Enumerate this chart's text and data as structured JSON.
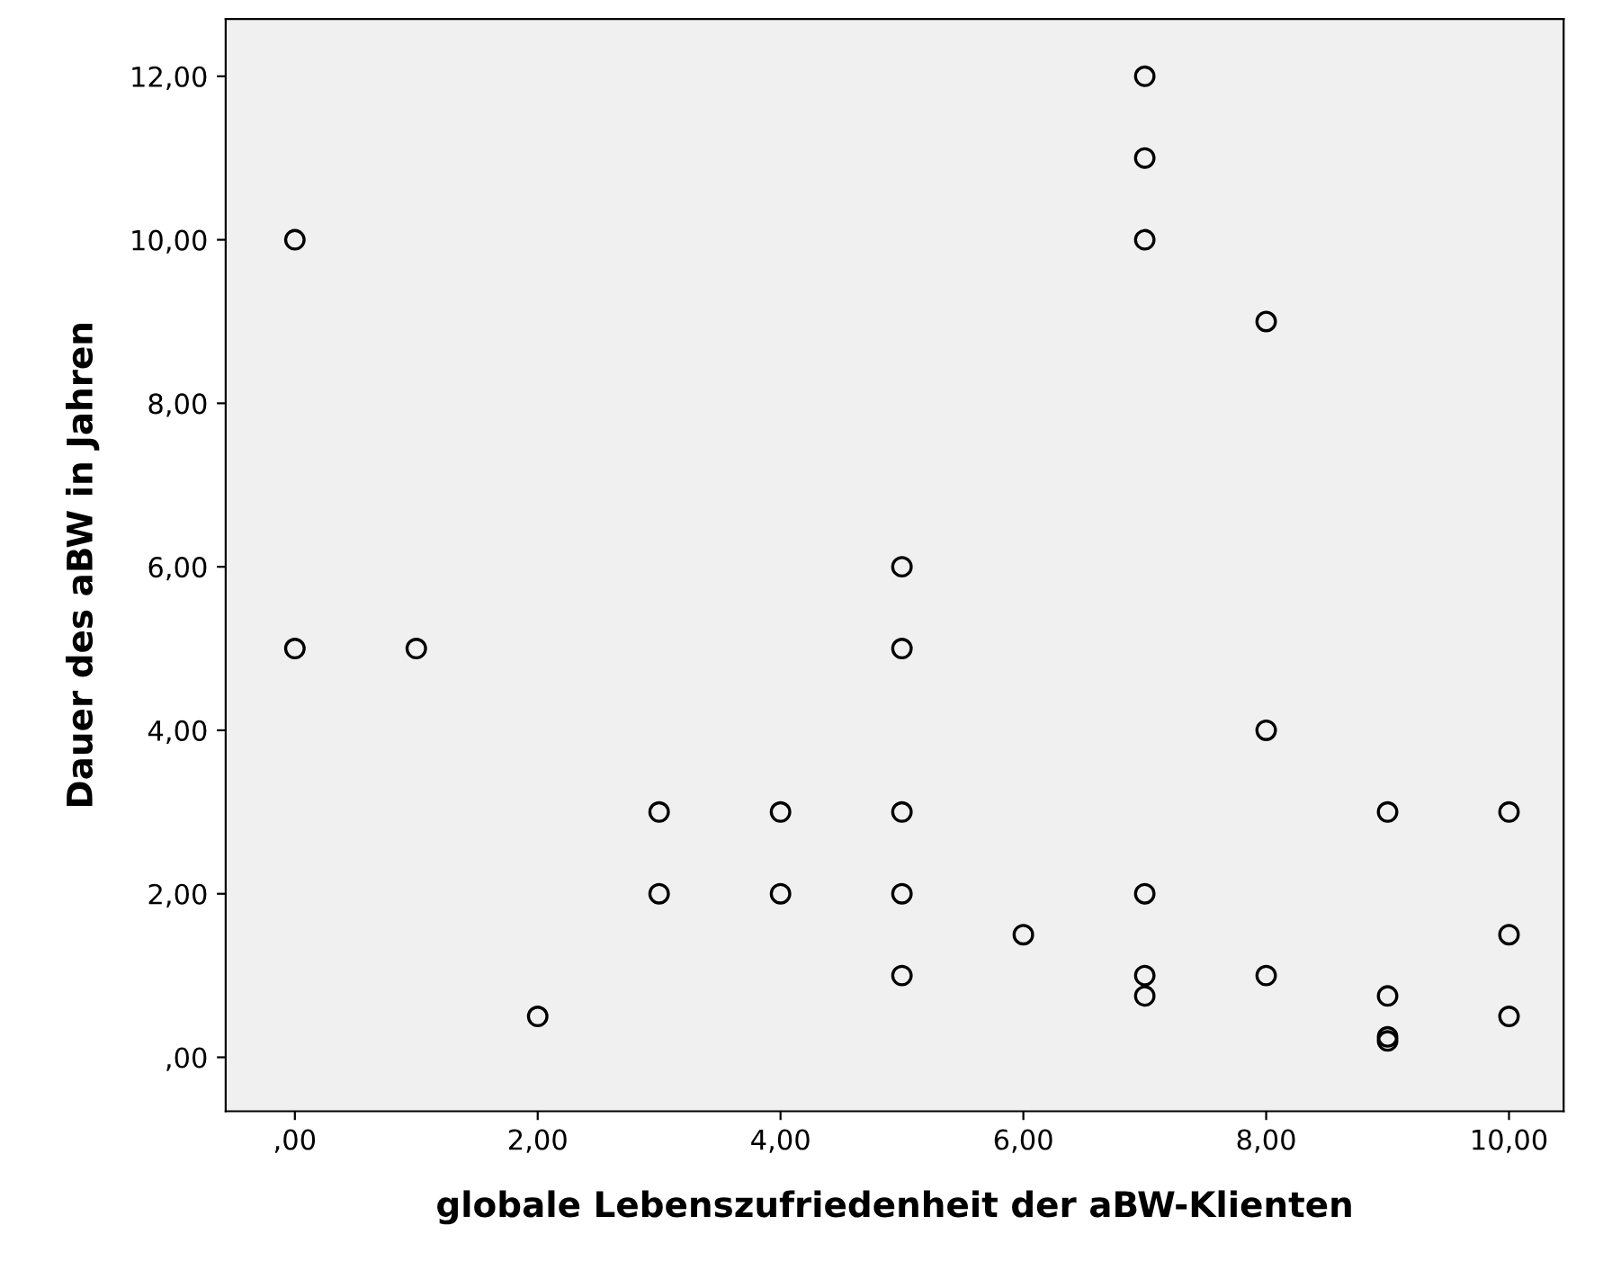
{
  "chart_data": {
    "type": "scatter",
    "xlabel": "globale Lebenszufriedenheit der aBW-Klienten",
    "ylabel": "Dauer des aBW in Jahren",
    "x": [
      0,
      0,
      1,
      2,
      3,
      3,
      4,
      4,
      5,
      5,
      5,
      5,
      5,
      6,
      7,
      7,
      7,
      7,
      7,
      7,
      8,
      8,
      8,
      9,
      9,
      9,
      9,
      10,
      10,
      10
    ],
    "series": [
      {
        "color": "#000000",
        "values": [
          10,
          5,
          5,
          0.5,
          3,
          2,
          3,
          2,
          6,
          5,
          3,
          2,
          1,
          1.5,
          12,
          11,
          10,
          2,
          1,
          0.75,
          9,
          4,
          1,
          3,
          0.75,
          0.25,
          0.2,
          3,
          1.5,
          0.5
        ]
      }
    ],
    "marker": "circle",
    "grid": false,
    "legend": false,
    "xlim": [
      -0.57,
      10.45
    ],
    "ylim": [
      -0.66,
      12.7
    ],
    "xticks": [
      {
        "value": 0,
        "label": ",00"
      },
      {
        "value": 2,
        "label": "2,00"
      },
      {
        "value": 4,
        "label": "4,00"
      },
      {
        "value": 6,
        "label": "6,00"
      },
      {
        "value": 8,
        "label": "8,00"
      },
      {
        "value": 10,
        "label": "10,00"
      }
    ],
    "yticks": [
      {
        "value": 0,
        "label": ",00"
      },
      {
        "value": 2,
        "label": "2,00"
      },
      {
        "value": 4,
        "label": "4,00"
      },
      {
        "value": 6,
        "label": "6,00"
      },
      {
        "value": 8,
        "label": "8,00"
      },
      {
        "value": 10,
        "label": "10,00"
      },
      {
        "value": 12,
        "label": "12,00"
      }
    ]
  }
}
